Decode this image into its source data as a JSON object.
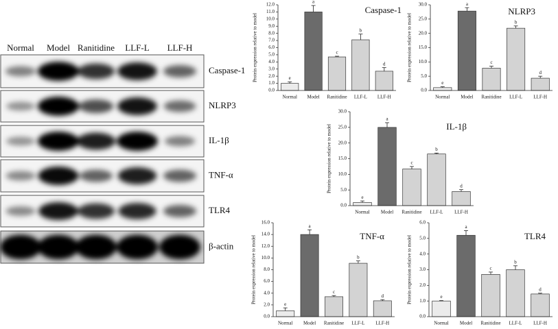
{
  "blot": {
    "lanes": [
      "Normal",
      "Model",
      "Ranitidine",
      "LLF-L",
      "LLF-H"
    ],
    "proteins": [
      "Caspase-1",
      "NLRP3",
      "IL-1β",
      "TNF-α",
      "TLR4",
      "β-actin"
    ]
  },
  "chart_data": [
    {
      "type": "bar",
      "title": "Caspase-1",
      "y_label": "Protein expression relative to model",
      "categories": [
        "Normal",
        "Model",
        "Ranitidine",
        "LLF-L",
        "LLF-H"
      ],
      "values": [
        1.0,
        11.0,
        4.7,
        7.1,
        2.7
      ],
      "errors": [
        0.2,
        0.9,
        0.1,
        0.8,
        0.5
      ],
      "letters": [
        "e",
        "a",
        "c",
        "b",
        "d"
      ],
      "colors": [
        "#ebebeb",
        "#6b6b6b",
        "#d3d3d3",
        "#d3d3d3",
        "#d3d3d3"
      ],
      "ylim": [
        0,
        12
      ],
      "yticks": [
        {
          "value": 0,
          "label": "0.0"
        },
        {
          "value": 1,
          "label": "1.0"
        },
        {
          "value": 2,
          "label": "2.0"
        },
        {
          "value": 3,
          "label": "3.0"
        },
        {
          "value": 4,
          "label": "4.0"
        },
        {
          "value": 5,
          "label": "5.0"
        },
        {
          "value": 6,
          "label": "6.0"
        },
        {
          "value": 7,
          "label": "7.0"
        },
        {
          "value": 8,
          "label": "8.0"
        },
        {
          "value": 9,
          "label": "9.0"
        },
        {
          "value": 10,
          "label": "10.0"
        },
        {
          "value": 11,
          "label": "11.0"
        },
        {
          "value": 12,
          "label": "12.0"
        }
      ]
    },
    {
      "type": "bar",
      "title": "NLRP3",
      "y_label": "Protein expression relative to model",
      "categories": [
        "Normal",
        "Model",
        "Ranitidine",
        "LLF-L",
        "LLF-H"
      ],
      "values": [
        1.0,
        27.8,
        7.8,
        21.8,
        4.3
      ],
      "errors": [
        0.3,
        1.2,
        0.7,
        0.8,
        0.7
      ],
      "letters": [
        "e",
        "a",
        "c",
        "b",
        "d"
      ],
      "colors": [
        "#ebebeb",
        "#6b6b6b",
        "#d3d3d3",
        "#d3d3d3",
        "#d3d3d3"
      ],
      "ylim": [
        0,
        30
      ],
      "yticks": [
        {
          "value": 0,
          "label": "0.0"
        },
        {
          "value": 5,
          "label": "5.0"
        },
        {
          "value": 10,
          "label": "10.0"
        },
        {
          "value": 15,
          "label": "15.0"
        },
        {
          "value": 20,
          "label": "20.0"
        },
        {
          "value": 25,
          "label": "25.0"
        },
        {
          "value": 30,
          "label": "30.0"
        }
      ]
    },
    {
      "type": "bar",
      "title": "IL-1β",
      "y_label": "Protein expression relative to model",
      "categories": [
        "Normal",
        "Model",
        "Ranitidine",
        "LLF-L",
        "LLF-H"
      ],
      "values": [
        1.0,
        25.0,
        11.7,
        16.5,
        4.5
      ],
      "errors": [
        0.5,
        1.5,
        0.8,
        0.3,
        0.6
      ],
      "letters": [
        "e",
        "a",
        "c",
        "b",
        "d"
      ],
      "colors": [
        "#ebebeb",
        "#6b6b6b",
        "#d3d3d3",
        "#d3d3d3",
        "#d3d3d3"
      ],
      "ylim": [
        0,
        30
      ],
      "yticks": [
        {
          "value": 0,
          "label": "0.0"
        },
        {
          "value": 5,
          "label": "5.0"
        },
        {
          "value": 10,
          "label": "10.0"
        },
        {
          "value": 15,
          "label": "15.0"
        },
        {
          "value": 20,
          "label": "20.0"
        },
        {
          "value": 25,
          "label": "25.0"
        },
        {
          "value": 30,
          "label": "30.0"
        }
      ]
    },
    {
      "type": "bar",
      "title": "TNF-α",
      "y_label": "Protein expression relative to model",
      "categories": [
        "Normal",
        "Model",
        "Ranitidine",
        "LLF-L",
        "LLF-H"
      ],
      "values": [
        1.0,
        14.0,
        3.4,
        9.1,
        2.7
      ],
      "errors": [
        0.5,
        0.8,
        0.2,
        0.4,
        0.2
      ],
      "letters": [
        "e",
        "a",
        "c",
        "b",
        "d"
      ],
      "colors": [
        "#ebebeb",
        "#6b6b6b",
        "#d3d3d3",
        "#d3d3d3",
        "#d3d3d3"
      ],
      "ylim": [
        0,
        16
      ],
      "yticks": [
        {
          "value": 0,
          "label": "0.0"
        },
        {
          "value": 2,
          "label": "2.0"
        },
        {
          "value": 4,
          "label": "4.0"
        },
        {
          "value": 6,
          "label": "6.0"
        },
        {
          "value": 8,
          "label": "8.0"
        },
        {
          "value": 10,
          "label": "10.0"
        },
        {
          "value": 12,
          "label": "12.0"
        },
        {
          "value": 14,
          "label": "14.0"
        },
        {
          "value": 16,
          "label": "16.0"
        }
      ]
    },
    {
      "type": "bar",
      "title": "TLR4",
      "y_label": "Protein expression relative to model",
      "categories": [
        "Normal",
        "Model",
        "Ranitidine",
        "LLF-L",
        "LLF-H"
      ],
      "values": [
        1.0,
        5.2,
        2.7,
        3.0,
        1.45
      ],
      "errors": [
        0.03,
        0.3,
        0.15,
        0.25,
        0.05
      ],
      "letters": [
        "e",
        "a",
        "c",
        "b",
        "d"
      ],
      "colors": [
        "#ebebeb",
        "#6b6b6b",
        "#d3d3d3",
        "#d3d3d3",
        "#d3d3d3"
      ],
      "ylim": [
        0,
        6
      ],
      "yticks": [
        {
          "value": 0,
          "label": "0.0"
        },
        {
          "value": 1,
          "label": "1.0"
        },
        {
          "value": 2,
          "label": "2.0"
        },
        {
          "value": 3,
          "label": "3.0"
        },
        {
          "value": 4,
          "label": "4.0"
        },
        {
          "value": 5,
          "label": "5.0"
        },
        {
          "value": 6,
          "label": "6.0"
        }
      ]
    }
  ]
}
